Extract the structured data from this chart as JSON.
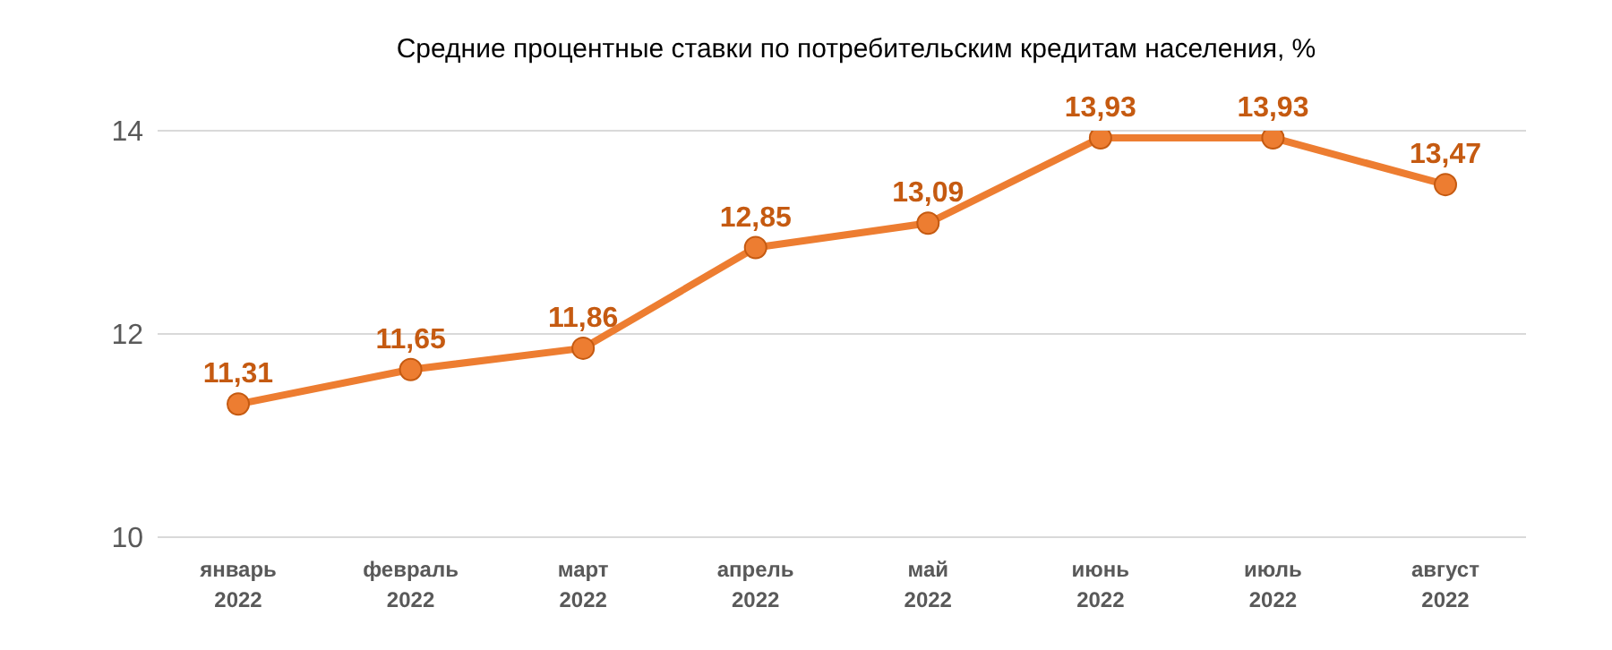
{
  "chart_data": {
    "type": "line",
    "title": "Средние процентные ставки по потребительским кредитам населения, %",
    "categories": [
      "январь 2022",
      "февраль 2022",
      "март 2022",
      "апрель 2022",
      "май 2022",
      "июнь 2022",
      "июль 2022",
      "август 2022"
    ],
    "series": [
      {
        "color": "#ed7d31",
        "values": [
          11.31,
          11.65,
          11.86,
          12.85,
          13.09,
          13.93,
          13.93,
          13.47
        ],
        "value_labels": [
          "11,31",
          "11,65",
          "11,86",
          "12,85",
          "13,09",
          "13,93",
          "13,93",
          "13,47"
        ]
      }
    ],
    "ylim": [
      10,
      14
    ],
    "yticks": [
      10,
      12,
      14
    ],
    "grid": "y",
    "marker": "circle",
    "line_style": "solid",
    "legend": false
  }
}
